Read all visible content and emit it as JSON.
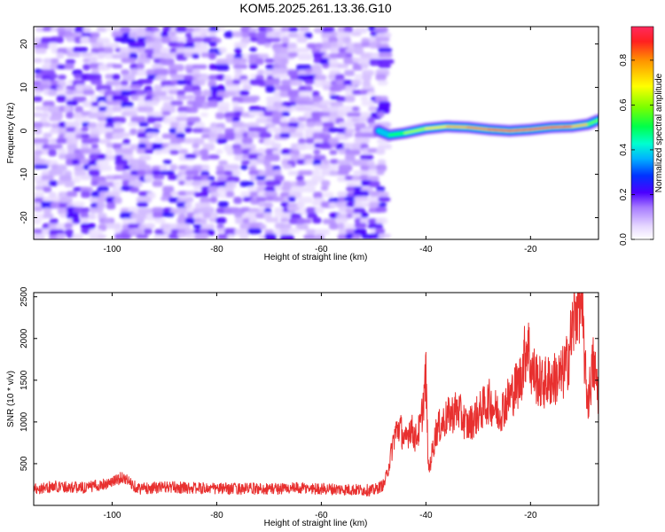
{
  "title": "KOM5.2025.261.13.36.G10",
  "chart_data": [
    {
      "type": "heatmap",
      "xlabel": "Height of straight line (km)",
      "ylabel": "Frequency (Hz)",
      "xlim": [
        -115,
        -7
      ],
      "ylim": [
        -25,
        24
      ],
      "x_ticks": [
        -100,
        -80,
        -60,
        -40,
        -20
      ],
      "x_tick_labels": [
        "-100",
        "-80",
        "-60",
        "-40",
        "-20"
      ],
      "y_ticks": [
        20,
        10,
        0,
        -10,
        -20
      ],
      "y_tick_labels": [
        "20",
        "10",
        "0",
        "-10",
        "-20"
      ],
      "noise_region_km": [
        -115,
        -48
      ],
      "signal_band": {
        "points_km": [
          -49,
          -47,
          -44,
          -40,
          -36,
          -32,
          -28,
          -24,
          -20,
          -16,
          -12,
          -9,
          -7
        ],
        "freq_hz": [
          0,
          -1,
          -0.5,
          0.5,
          1,
          0.8,
          0.3,
          0,
          0.3,
          0.8,
          1,
          1.5,
          2.5
        ],
        "amplitude": [
          0.3,
          0.45,
          0.6,
          0.7,
          0.8,
          0.85,
          0.9,
          0.95,
          0.95,
          0.95,
          0.9,
          0.7,
          0.5
        ]
      },
      "colorbar": {
        "label": "Normalized spectral amplitude",
        "range": [
          0,
          0.95
        ],
        "ticks": [
          0.0,
          0.2,
          0.4,
          0.6,
          0.8
        ],
        "tick_labels": [
          "0.0",
          "0.2",
          "0.4",
          "0.6",
          "0.8"
        ]
      }
    },
    {
      "type": "line",
      "xlabel": "Height of straight line (km)",
      "ylabel": "SNR (10 * v/v)",
      "xlim": [
        -115,
        -7
      ],
      "ylim": [
        0,
        2550
      ],
      "x_ticks": [
        -100,
        -80,
        -60,
        -40,
        -20
      ],
      "x_tick_labels": [
        "-100",
        "-80",
        "-60",
        "-40",
        "-20"
      ],
      "y_ticks": [
        500,
        1000,
        1500,
        2000,
        2500
      ],
      "y_tick_labels": [
        "500",
        "1000",
        "1500",
        "2000",
        "2500"
      ],
      "series": [
        {
          "name": "SNR",
          "color": "#e8302f",
          "x": [
            -115,
            -110,
            -105,
            -100,
            -98,
            -95,
            -90,
            -85,
            -80,
            -75,
            -70,
            -65,
            -60,
            -55,
            -50,
            -48,
            -47,
            -46,
            -45,
            -44,
            -43,
            -42,
            -41,
            -40,
            -39.5,
            -38,
            -36,
            -34,
            -32,
            -30,
            -28,
            -26,
            -24,
            -22,
            -20.5,
            -20,
            -19,
            -18,
            -16,
            -14,
            -13,
            -12,
            -11,
            -10.5,
            -10,
            -9.5,
            -9,
            -8,
            -7
          ],
          "y": [
            200,
            230,
            210,
            280,
            340,
            200,
            220,
            210,
            200,
            200,
            200,
            205,
            200,
            190,
            180,
            250,
            500,
            850,
            950,
            750,
            950,
            800,
            950,
            1550,
            400,
            900,
            1050,
            1150,
            950,
            1100,
            1250,
            1100,
            1300,
            1500,
            2000,
            1650,
            1550,
            1450,
            1500,
            1550,
            1700,
            2100,
            2450,
            2500,
            2200,
            1550,
            1250,
            1700,
            1350
          ]
        }
      ]
    }
  ]
}
